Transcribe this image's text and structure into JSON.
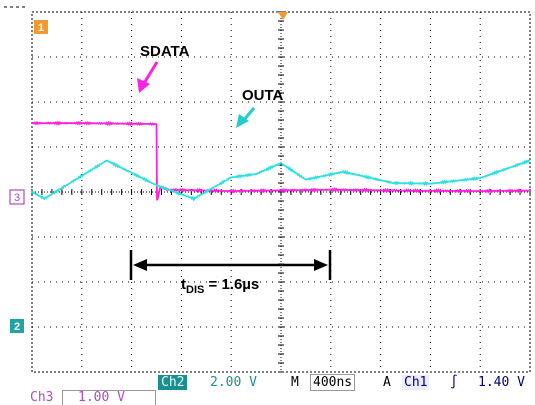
{
  "channels": {
    "ch1": {
      "id": "1",
      "color": "#f29b2c"
    },
    "ch2": {
      "id": "2",
      "color": "#1fa3a3"
    },
    "ch3": {
      "id": "3",
      "color": "#b04bc0"
    }
  },
  "annotations": {
    "sdata": "SDATA",
    "outa": "OUTA",
    "tdis_t": "t",
    "tdis_sub": "DIS",
    "tdis_value": " = 1.6µs"
  },
  "status": {
    "ch2_label": "Ch2",
    "ch2_scale": "2.00 V",
    "m_label": "M",
    "timebase": "400ns",
    "a_label": "A",
    "trig_ch": "Ch1",
    "trig_slope": "∫",
    "trig_level": "1.40 V",
    "ch3_label": "Ch3",
    "ch3_scale": "1.00 V"
  },
  "colors": {
    "sdata_trace": "#ff22dd",
    "outa_trace": "#2ee0e0",
    "grid": "#000000",
    "sdata_arrow": "#ff22dd",
    "outa_arrow": "#22cccc",
    "badge_teal": "#1a8f8f",
    "badge_blue": "#00007a"
  },
  "chart_data": {
    "type": "line",
    "xlabel": "",
    "ylabel": "",
    "x_unit": "ns",
    "x_range": [
      0,
      4000
    ],
    "series": [
      {
        "name": "SDATA",
        "values": [
          [
            0,
            3.06
          ],
          [
            400,
            3.06
          ],
          [
            1000,
            3.02
          ],
          [
            1004,
            -0.4
          ],
          [
            1030,
            0.2
          ],
          [
            1100,
            0.1
          ],
          [
            1600,
            0.04
          ],
          [
            2400,
            0.1
          ],
          [
            3000,
            0.06
          ],
          [
            3600,
            0.04
          ],
          [
            4000,
            0.06
          ]
        ]
      },
      {
        "name": "OUTA",
        "values": [
          [
            0,
            0.01
          ],
          [
            100,
            -0.3
          ],
          [
            600,
            1.4
          ],
          [
            1000,
            0.3
          ],
          [
            1300,
            -0.3
          ],
          [
            1600,
            0.65
          ],
          [
            1800,
            0.8
          ],
          [
            2000,
            1.28
          ],
          [
            2200,
            0.55
          ],
          [
            2500,
            0.9
          ],
          [
            2900,
            0.4
          ],
          [
            3200,
            0.37
          ],
          [
            3600,
            0.62
          ],
          [
            4000,
            1.4
          ]
        ]
      }
    ]
  }
}
